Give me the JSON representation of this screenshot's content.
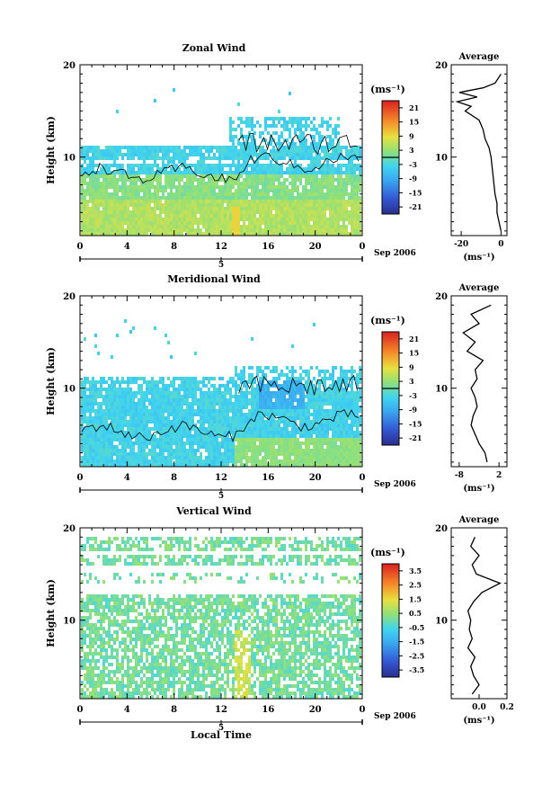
{
  "units": "(ms⁻¹)",
  "units_avg": "(ms⁻¹)",
  "height_label": "Height (km)",
  "xlabel_local_time": "Local Time",
  "date_label": "Sep 2006",
  "day_label": "5",
  "chart_data": [
    {
      "type": "heatmap",
      "title": "Zonal Wind",
      "ylabel": "Height (km)",
      "xlabel": "",
      "x_ticks": [
        "0",
        "4",
        "8",
        "12",
        "16",
        "20",
        "0"
      ],
      "xlim": [
        0,
        24
      ],
      "y_ticks": [
        "20",
        "10"
      ],
      "ylim": [
        1.5,
        20
      ],
      "colorbar": {
        "label": "(ms⁻¹)",
        "ticks": [
          "21",
          "15",
          "9",
          "3",
          "-3",
          "-9",
          "-15",
          "-21"
        ],
        "range": [
          -24,
          24
        ],
        "contour_level": 0
      },
      "average_profile": {
        "title": "Average",
        "x_ticks": [
          "-20",
          "0"
        ],
        "xlim": [
          -25,
          3
        ],
        "ylim": [
          1.5,
          20
        ],
        "y_ticks": [
          "20",
          "10"
        ],
        "xlabel": "(ms⁻¹)",
        "height": [
          2,
          3,
          4,
          5,
          6,
          7,
          8,
          9,
          10,
          11,
          12,
          13,
          14,
          15,
          15.5,
          16,
          16.5,
          17,
          17.5,
          18,
          19
        ],
        "speed": [
          0,
          -1,
          -2,
          -2,
          -3,
          -3.5,
          -4,
          -4.5,
          -5,
          -6,
          -8,
          -9,
          -11,
          -18,
          -15,
          -22,
          -12,
          -21,
          -9,
          -3,
          0
        ]
      }
    },
    {
      "type": "heatmap",
      "title": "Meridional Wind",
      "ylabel": "Height (km)",
      "xlabel": "",
      "x_ticks": [
        "0",
        "4",
        "8",
        "12",
        "16",
        "20",
        "0"
      ],
      "xlim": [
        0,
        24
      ],
      "y_ticks": [
        "20",
        "10"
      ],
      "ylim": [
        1.5,
        20
      ],
      "colorbar": {
        "label": "(ms⁻¹)",
        "ticks": [
          "21",
          "15",
          "9",
          "3",
          "-3",
          "-9",
          "-15",
          "-21"
        ],
        "range": [
          -24,
          24
        ],
        "contour_level": 0
      },
      "average_profile": {
        "title": "Average",
        "x_ticks": [
          "-8",
          "2"
        ],
        "xlim": [
          -10,
          4
        ],
        "ylim": [
          1.5,
          20
        ],
        "y_ticks": [
          "20",
          "10"
        ],
        "xlabel": "(ms⁻¹)",
        "height": [
          2,
          3,
          4,
          5,
          6,
          7,
          8,
          9,
          10,
          11,
          12,
          13,
          14,
          15,
          16,
          17,
          18,
          19
        ],
        "speed": [
          -1,
          -1.5,
          -3,
          -4,
          -5,
          -4.5,
          -3.5,
          -4,
          -5,
          -3.5,
          -4,
          -2,
          -6,
          -4,
          -7,
          -3,
          -5,
          0
        ]
      }
    },
    {
      "type": "heatmap",
      "title": "Vertical Wind",
      "ylabel": "Height (km)",
      "xlabel": "Local Time",
      "x_ticks": [
        "0",
        "4",
        "8",
        "12",
        "16",
        "20",
        "0"
      ],
      "xlim": [
        0,
        24
      ],
      "y_ticks": [
        "20",
        "10"
      ],
      "ylim": [
        1.5,
        20
      ],
      "colorbar": {
        "label": "(ms⁻¹)",
        "ticks": [
          "3.5",
          "2.5",
          "1.5",
          "0.5",
          "-0.5",
          "-1.5",
          "-2.5",
          "-3.5"
        ],
        "range": [
          -4,
          4
        ]
      },
      "average_profile": {
        "title": "Average",
        "x_ticks": [
          "0.0",
          "0.2"
        ],
        "xlim": [
          -0.2,
          0.2
        ],
        "ylim": [
          1.5,
          20
        ],
        "y_ticks": [
          "20",
          "10"
        ],
        "xlabel": "(ms⁻¹)",
        "height": [
          2,
          3,
          4,
          5,
          6,
          7,
          8,
          9,
          10,
          11,
          12,
          13,
          14,
          15,
          16,
          17,
          18,
          19
        ],
        "speed": [
          -0.05,
          0.0,
          -0.04,
          -0.06,
          -0.03,
          -0.08,
          -0.05,
          -0.07,
          -0.06,
          -0.08,
          -0.04,
          0.02,
          0.15,
          -0.02,
          -0.05,
          0.0,
          -0.06,
          -0.03
        ]
      }
    }
  ]
}
